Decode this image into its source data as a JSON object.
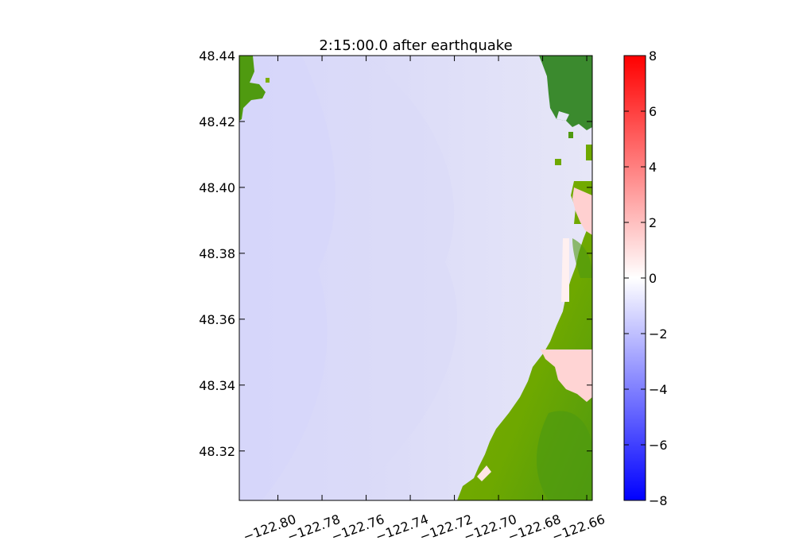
{
  "chart_data": {
    "type": "heatmap",
    "title": "2:15:00.0 after earthquake",
    "xlabel": "",
    "ylabel": "",
    "xlim": [
      -122.8175,
      -122.6575
    ],
    "ylim": [
      48.305,
      48.44
    ],
    "x_ticks": [
      -122.8,
      -122.78,
      -122.76,
      -122.74,
      -122.72,
      -122.7,
      -122.68,
      -122.66
    ],
    "x_tick_labels": [
      "−122.80",
      "−122.78",
      "−122.76",
      "−122.74",
      "−122.72",
      "−122.70",
      "−122.68",
      "−122.66"
    ],
    "y_ticks": [
      48.32,
      48.34,
      48.36,
      48.38,
      48.4,
      48.42,
      48.44
    ],
    "y_tick_labels": [
      "48.32",
      "48.34",
      "48.36",
      "48.38",
      "48.40",
      "48.42",
      "48.44"
    ],
    "colorbar": {
      "range": [
        -8,
        8
      ],
      "ticks": [
        8,
        6,
        4,
        2,
        0,
        -2,
        -4,
        -6,
        -8
      ],
      "tick_labels": [
        "8",
        "6",
        "4",
        "2",
        "0",
        "−2",
        "−4",
        "−6",
        "−8"
      ],
      "colormap": "bwr",
      "color_min": "#0000ff",
      "color_mid": "#ffffff",
      "color_max": "#ff0000"
    },
    "colors": {
      "water": "#e1e1f8",
      "water_deep": "#d4d4fa",
      "land_light": "#7cb000",
      "land_dark": "#3b8a2e",
      "inundation": "#ffd4d4"
    },
    "grid": false,
    "legend": "none"
  }
}
